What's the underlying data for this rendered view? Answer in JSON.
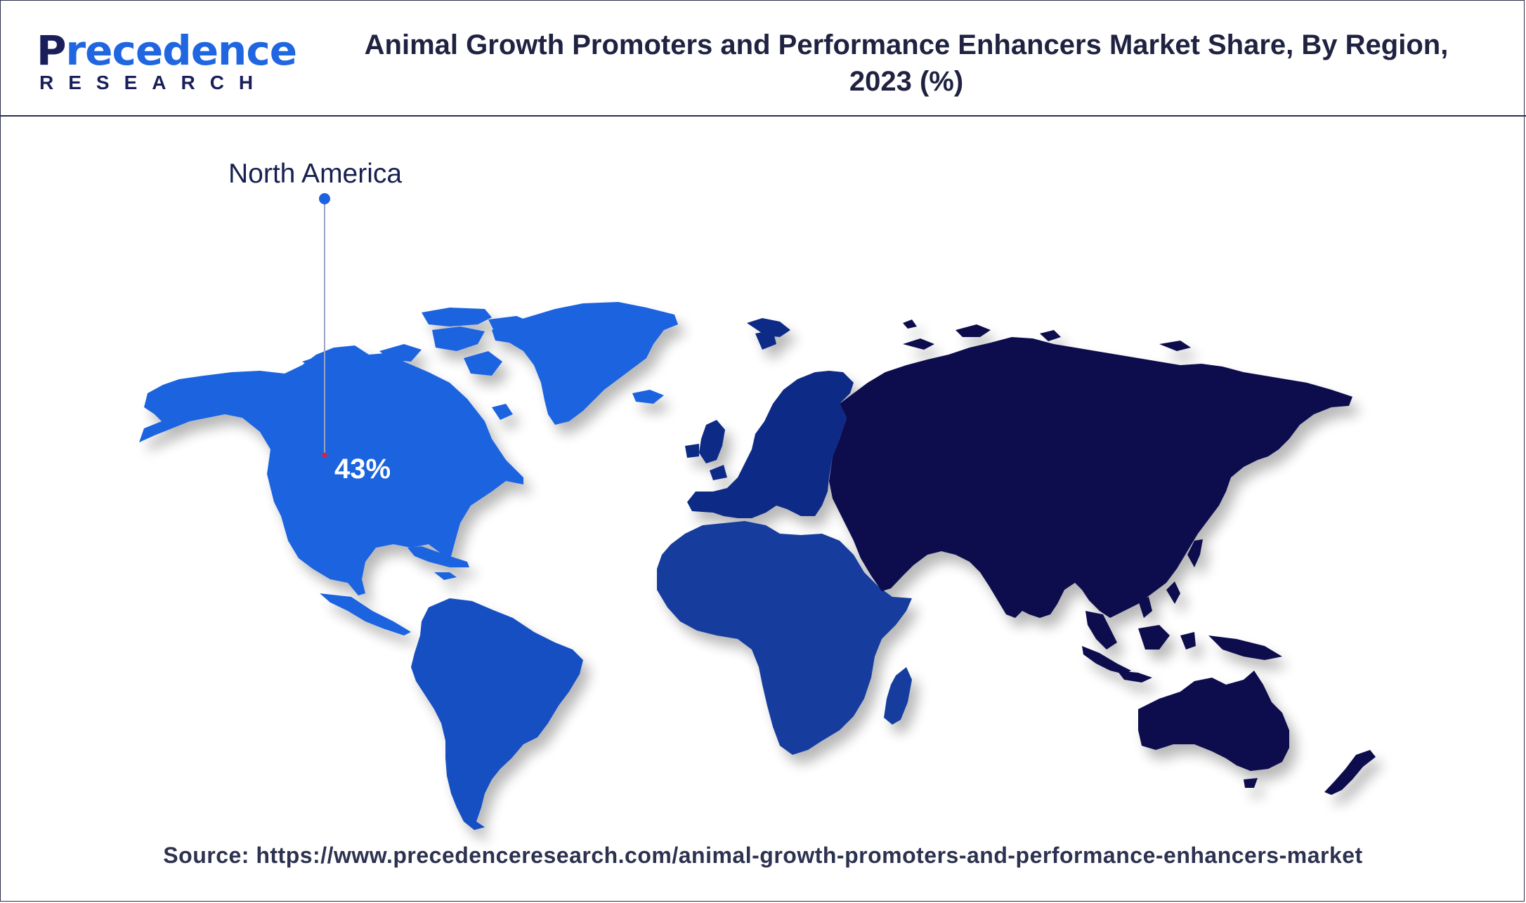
{
  "header": {
    "logo_main_initial": "P",
    "logo_main_rest": "recedence",
    "logo_sub": "RESEARCH",
    "title_line1": "Animal Growth Promoters and Performance Enhancers Market Share, By Region,",
    "title_line2": "2023 (%)"
  },
  "map": {
    "regions": [
      {
        "name": "North America",
        "value": "43%",
        "color": "#1d63e0",
        "labeled": true
      },
      {
        "name": "Latin America",
        "color": "#1550c2",
        "labeled": false
      },
      {
        "name": "Europe",
        "color": "#0c2a86",
        "labeled": false
      },
      {
        "name": "Africa",
        "color": "#143e9e",
        "labeled": false
      },
      {
        "name": "Asia Pacific",
        "color": "#0b0f4e",
        "labeled": false
      }
    ],
    "callout": {
      "label": "North America",
      "value": "43%"
    }
  },
  "footer": {
    "source": "Source: https://www.precedenceresearch.com/animal-growth-promoters-and-performance-enhancers-market"
  },
  "colors": {
    "title_text": "#1f2240",
    "leader_line": "#9aa3c8",
    "leader_dot": "#1d63e0",
    "anchor_dot": "#e0203a"
  }
}
